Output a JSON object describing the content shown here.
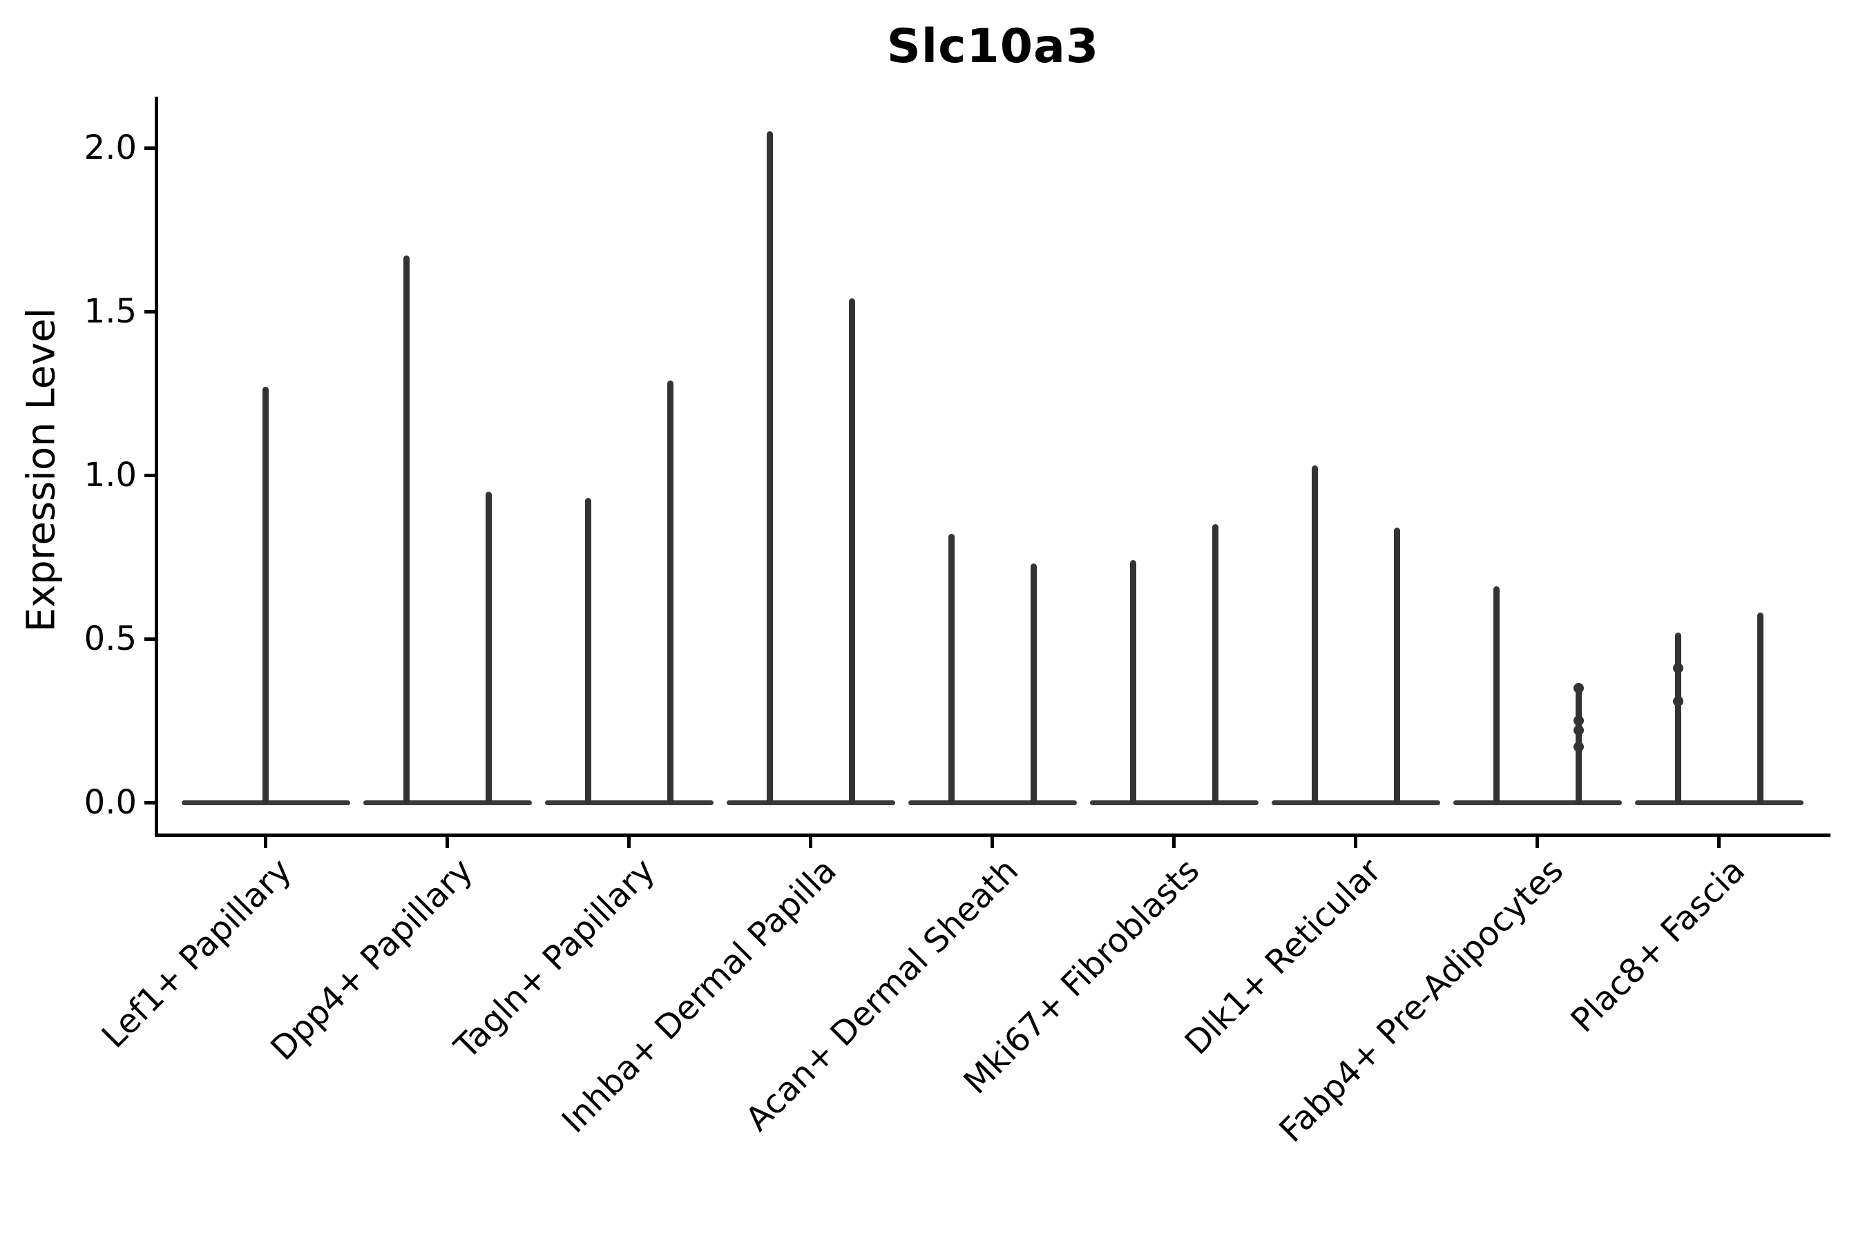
{
  "title": "Slc10a3",
  "y_axis": {
    "label": "Expression Level",
    "tick_labels": [
      "0.0",
      "0.5",
      "1.0",
      "1.5",
      "2.0"
    ],
    "tick_values": [
      0.0,
      0.5,
      1.0,
      1.5,
      2.0
    ]
  },
  "chart_data": {
    "type": "violin",
    "title": "Slc10a3",
    "xlabel": "",
    "ylabel": "Expression Level",
    "ylim": [
      -0.05,
      2.16
    ],
    "grid": false,
    "legend": false,
    "ytick_labels": [
      "0.0",
      "0.5",
      "1.0",
      "1.5",
      "2.0"
    ],
    "ytick_values": [
      0.0,
      0.5,
      1.0,
      1.5,
      2.0
    ],
    "categories": [
      "Lef1+ Papillary",
      "Dpp4+ Papillary",
      "Tagln+ Papillary",
      "Inhba+ Dermal Papilla",
      "Acan+ Dermal Sheath",
      "Mki67+ Fibroblasts",
      "Dlk1+ Reticular",
      "Fabp4+ Pre-Adipocytes",
      "Plac8+ Fascia"
    ],
    "groups": [
      {
        "category": "Lef1+ Papillary",
        "violins": [
          {
            "offset": 0,
            "peak": 1.27,
            "min": 0.0,
            "points": []
          }
        ]
      },
      {
        "category": "Dpp4+ Papillary",
        "violins": [
          {
            "offset": -1,
            "peak": 1.67,
            "min": 0.0,
            "points": []
          },
          {
            "offset": 1,
            "peak": 0.95,
            "min": 0.0,
            "points": []
          }
        ]
      },
      {
        "category": "Tagln+ Papillary",
        "violins": [
          {
            "offset": -1,
            "peak": 0.93,
            "min": 0.0,
            "points": []
          },
          {
            "offset": 1,
            "peak": 1.29,
            "min": 0.0,
            "points": []
          }
        ]
      },
      {
        "category": "Inhba+ Dermal Papilla",
        "violins": [
          {
            "offset": -1,
            "peak": 2.05,
            "min": 0.0,
            "points": []
          },
          {
            "offset": 1,
            "peak": 1.54,
            "min": 0.0,
            "points": []
          }
        ]
      },
      {
        "category": "Acan+ Dermal Sheath",
        "violins": [
          {
            "offset": -1,
            "peak": 0.82,
            "min": 0.0,
            "points": []
          },
          {
            "offset": 1,
            "peak": 0.73,
            "min": 0.0,
            "points": []
          }
        ]
      },
      {
        "category": "Mki67+ Fibroblasts",
        "violins": [
          {
            "offset": -1,
            "peak": 0.74,
            "min": 0.0,
            "points": []
          },
          {
            "offset": 1,
            "peak": 0.85,
            "min": 0.0,
            "points": []
          }
        ]
      },
      {
        "category": "Dlk1+ Reticular",
        "violins": [
          {
            "offset": -1,
            "peak": 1.03,
            "min": 0.0,
            "points": []
          },
          {
            "offset": 1,
            "peak": 0.84,
            "min": 0.0,
            "points": []
          }
        ]
      },
      {
        "category": "Fabp4+ Pre-Adipocytes",
        "violins": [
          {
            "offset": -1,
            "peak": 0.66,
            "min": 0.0,
            "points": []
          },
          {
            "offset": 1,
            "peak": 0.35,
            "min": 0.0,
            "points": [
              0.35,
              0.25,
              0.22,
              0.17
            ]
          }
        ]
      },
      {
        "category": "Plac8+ Fascia",
        "violins": [
          {
            "offset": -1,
            "peak": 0.52,
            "min": 0.0,
            "points": [
              0.41,
              0.31
            ]
          },
          {
            "offset": 1,
            "peak": 0.58,
            "min": 0.0,
            "points": []
          }
        ]
      }
    ],
    "style": {
      "violin_color": "#333333",
      "baseline_color": "#3a3a3a",
      "spine_color": "#000000",
      "text_color": "#000000",
      "background": "#ffffff"
    }
  }
}
